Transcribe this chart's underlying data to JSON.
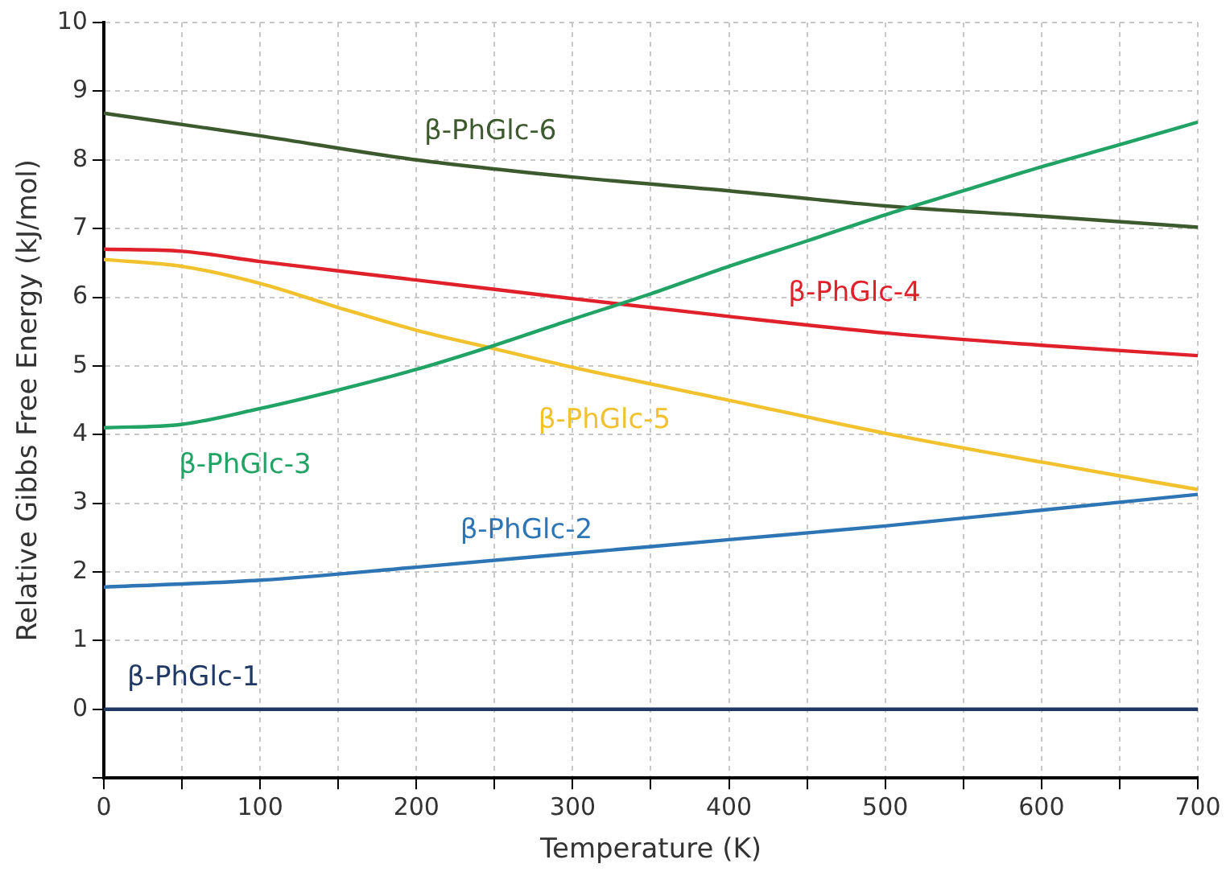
{
  "chart_data": {
    "type": "line",
    "xlabel": "Temperature (K)",
    "ylabel": "Relative Gibbs Free Energy (kJ/mol)",
    "xlim": [
      0,
      700
    ],
    "ylim": [
      -1,
      10
    ],
    "xticks": [
      0,
      {
        "value": 50,
        "label": null
      },
      100,
      {
        "value": 150,
        "label": null
      },
      200,
      {
        "value": 250,
        "label": null
      },
      300,
      {
        "value": 350,
        "label": null
      },
      400,
      {
        "value": 450,
        "label": null
      },
      500,
      {
        "value": 550,
        "label": null
      },
      600,
      {
        "value": 650,
        "label": null
      },
      700
    ],
    "yticks": [
      {
        "value": -1,
        "label": null
      },
      0,
      1,
      2,
      3,
      4,
      5,
      6,
      7,
      8,
      9,
      10
    ],
    "grid": true,
    "legend": false,
    "marker": "none",
    "line_style": "solid",
    "series": [
      {
        "name": "β-PhGlc-1",
        "color": "#1f3864",
        "x": [
          0,
          700
        ],
        "values": [
          0,
          0
        ]
      },
      {
        "name": "β-PhGlc-2",
        "color": "#2e75b6",
        "x": [
          0,
          100,
          200,
          300,
          400,
          500,
          600,
          700
        ],
        "values": [
          1.78,
          1.88,
          2.07,
          2.27,
          2.47,
          2.67,
          2.9,
          3.13
        ]
      },
      {
        "name": "β-PhGlc-3",
        "color": "#21a366",
        "x": [
          0,
          50,
          100,
          150,
          200,
          250,
          300,
          350,
          400,
          450,
          500,
          550,
          600,
          650,
          700
        ],
        "values": [
          4.1,
          4.15,
          4.38,
          4.65,
          4.95,
          5.3,
          5.68,
          6.05,
          6.45,
          6.82,
          7.2,
          7.55,
          7.9,
          8.22,
          8.55
        ]
      },
      {
        "name": "β-PhGlc-4",
        "color": "#e0202a",
        "x": [
          0,
          50,
          100,
          200,
          300,
          400,
          500,
          600,
          700
        ],
        "values": [
          6.7,
          6.67,
          6.52,
          6.25,
          5.98,
          5.72,
          5.48,
          5.3,
          5.15
        ]
      },
      {
        "name": "β-PhGlc-5",
        "color": "#f2c12e",
        "x": [
          0,
          50,
          100,
          150,
          200,
          250,
          300,
          400,
          500,
          600,
          700
        ],
        "values": [
          6.55,
          6.45,
          6.2,
          5.85,
          5.52,
          5.25,
          4.98,
          4.5,
          4.02,
          3.6,
          3.2
        ]
      },
      {
        "name": "β-PhGlc-6",
        "color": "#3d5a2e",
        "x": [
          0,
          100,
          200,
          300,
          400,
          500,
          600,
          700
        ],
        "values": [
          8.68,
          8.35,
          8.0,
          7.75,
          7.55,
          7.33,
          7.18,
          7.02
        ]
      }
    ]
  }
}
